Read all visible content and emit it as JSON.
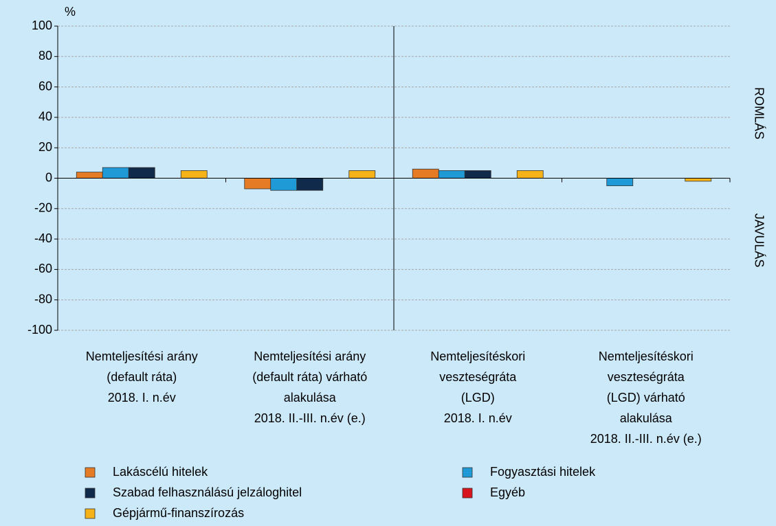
{
  "chart_data": {
    "type": "bar",
    "y_unit": "%",
    "right_labels": [
      "ROMLÁS",
      "JAVULÁS"
    ],
    "categories": [
      [
        "Nemteljesítési arány",
        "(default ráta)",
        "2018. I. n.év"
      ],
      [
        "Nemteljesítési arány",
        "(default ráta) várható",
        "alakulása",
        "2018. II.-III. n.év (e.)"
      ],
      [
        "Nemteljesítéskori",
        "veszteségráta",
        "(LGD)",
        "2018. I. n.év"
      ],
      [
        "Nemteljesítéskori",
        "veszteségráta",
        "(LGD) várható",
        "alakulása",
        "2018. II.-III. n.év (e.)"
      ]
    ],
    "series": [
      {
        "name": "Lakáscélú hitelek",
        "color": "#e57b25",
        "values": [
          4,
          -7,
          6,
          0
        ]
      },
      {
        "name": "Fogyasztási hitelek",
        "color": "#1f9ad6",
        "values": [
          7,
          -8,
          5,
          -5
        ]
      },
      {
        "name": "Szabad felhasználású jelzáloghitel",
        "color": "#0f2a4a",
        "values": [
          7,
          -8,
          5,
          0
        ]
      },
      {
        "name": "Egyéb",
        "color": "#d8141d",
        "values": [
          0,
          0,
          0,
          0
        ]
      },
      {
        "name": "Gépjármű-finanszírozás",
        "color": "#f6b319",
        "values": [
          5,
          5,
          5,
          -2
        ]
      }
    ],
    "ylim": [
      -100,
      100
    ],
    "yticks": [
      -100,
      -80,
      -60,
      -40,
      -20,
      0,
      20,
      40,
      60,
      80,
      100
    ],
    "grid": true
  }
}
